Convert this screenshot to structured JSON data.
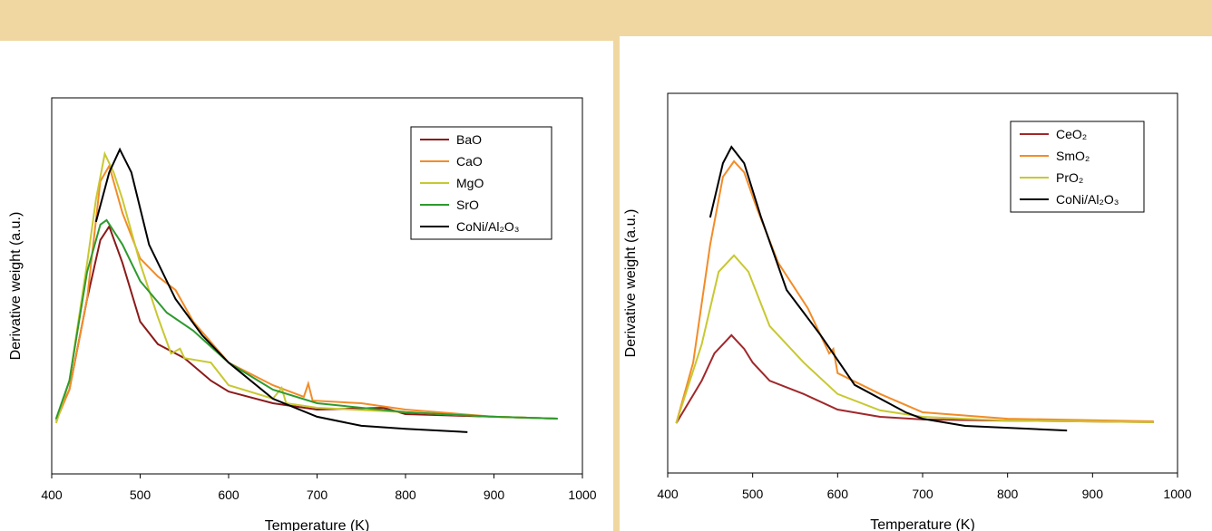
{
  "chart_data": [
    {
      "type": "line",
      "xlabel": "Temperature (K)",
      "ylabel": "Derivative weight (a.u.)",
      "xlim": [
        400,
        1000
      ],
      "ylim": [
        0,
        100
      ],
      "xticks": [
        400,
        500,
        600,
        700,
        800,
        900,
        1000
      ],
      "series": [
        {
          "name": "BaO",
          "color": "#8b1a1a",
          "x": [
            405,
            420,
            440,
            455,
            465,
            480,
            500,
            520,
            550,
            580,
            600,
            650,
            700,
            775,
            800,
            900,
            972
          ],
          "values": [
            14.5,
            22.4,
            46.5,
            62.2,
            65.8,
            56.1,
            40.5,
            34.5,
            30.8,
            24.8,
            21.9,
            18.8,
            17.1,
            17.6,
            15.9,
            15.2,
            14.7
          ]
        },
        {
          "name": "CaO",
          "color": "#f28c28",
          "x": [
            405,
            420,
            440,
            455,
            465,
            480,
            500,
            520,
            540,
            560,
            600,
            650,
            685,
            690,
            695,
            750,
            800,
            900,
            972
          ],
          "values": [
            14,
            22.4,
            46.5,
            77.8,
            81.9,
            69.4,
            57.3,
            52.5,
            48.9,
            40.5,
            29.6,
            23.6,
            20.5,
            24,
            19.5,
            18.8,
            17.1,
            15.2,
            14.7
          ]
        },
        {
          "name": "MgO",
          "color": "#c8c832",
          "x": [
            405,
            420,
            440,
            450,
            460,
            470,
            480,
            500,
            520,
            535,
            545,
            550,
            580,
            600,
            650,
            660,
            665,
            700,
            800,
            900,
            972
          ],
          "values": [
            13.5,
            24.8,
            56,
            73,
            85.1,
            80.2,
            73,
            56,
            41.7,
            32,
            33.3,
            30.8,
            29.6,
            23.6,
            20,
            22.9,
            18.8,
            17.6,
            16.4,
            15.2,
            14.7
          ]
        },
        {
          "name": "SrO",
          "color": "#2e9a2e",
          "x": [
            405,
            420,
            440,
            455,
            462,
            480,
            500,
            530,
            560,
            600,
            650,
            700,
            800,
            900,
            972
          ],
          "values": [
            14.7,
            24.8,
            53.7,
            66.3,
            67.5,
            61,
            51.3,
            42.9,
            38.1,
            29.6,
            22.4,
            18.8,
            16.4,
            15.2,
            14.7
          ]
        },
        {
          "name": "CoNi/Al₂O₃",
          "color": "#000000",
          "x": [
            450,
            465,
            477,
            490,
            510,
            540,
            570,
            600,
            650,
            700,
            750,
            800,
            870
          ],
          "values": [
            67,
            80.2,
            86.3,
            80.2,
            61,
            46.5,
            36.9,
            29.6,
            20,
            15.2,
            12.8,
            12,
            11.1
          ]
        }
      ]
    },
    {
      "type": "line",
      "xlabel": "Temperature (K)",
      "ylabel": "Derivative weight (a.u.)",
      "xlim": [
        400,
        1000
      ],
      "ylim": [
        0,
        100
      ],
      "xticks": [
        400,
        500,
        600,
        700,
        800,
        900,
        1000
      ],
      "series": [
        {
          "name": "CeO₂",
          "color": "#a0282a",
          "x": [
            410,
            440,
            455,
            475,
            490,
            500,
            520,
            560,
            600,
            650,
            700,
            800,
            972
          ],
          "values": [
            13.1,
            24.3,
            31.5,
            36.3,
            32.7,
            29.1,
            24.3,
            20.8,
            16.7,
            14.8,
            14.1,
            13.8,
            13.4
          ]
        },
        {
          "name": "SmO₂",
          "color": "#f28c28",
          "x": [
            410,
            430,
            450,
            465,
            478,
            490,
            505,
            530,
            565,
            590,
            595,
            600,
            650,
            700,
            800,
            972
          ],
          "values": [
            13.1,
            29.1,
            60.1,
            78,
            82.1,
            79.2,
            69.7,
            55.4,
            43.4,
            31.5,
            32.7,
            26.3,
            20.8,
            16,
            14.3,
            13.6
          ]
        },
        {
          "name": "PrO₂",
          "color": "#c8c832",
          "x": [
            410,
            440,
            460,
            478,
            495,
            520,
            560,
            600,
            650,
            700,
            800,
            972
          ],
          "values": [
            13.1,
            33.9,
            53,
            57.3,
            53,
            38.7,
            29.1,
            20.8,
            16.5,
            14.8,
            13.8,
            13.4
          ]
        },
        {
          "name": "CoNi/Al₂O₃",
          "color": "#000000",
          "x": [
            450,
            465,
            475,
            490,
            510,
            540,
            580,
            620,
            680,
            700,
            750,
            870
          ],
          "values": [
            67.3,
            81.6,
            85.9,
            81.6,
            67.3,
            48.2,
            36.3,
            23.2,
            16,
            14.3,
            12.4,
            11.2
          ]
        }
      ]
    }
  ]
}
